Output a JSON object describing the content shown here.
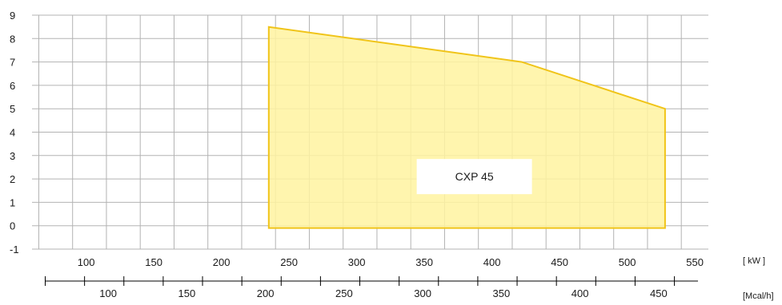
{
  "chart_data": {
    "type": "area",
    "title": "",
    "series": [
      {
        "name": "CXP 45",
        "polygon": [
          {
            "x": 235,
            "y": 8.5
          },
          {
            "x": 422,
            "y": 7.0
          },
          {
            "x": 528,
            "y": 5.0
          },
          {
            "x": 528,
            "y": -0.1
          },
          {
            "x": 235,
            "y": -0.1
          }
        ],
        "fill": "#fff3a0",
        "stroke": "#f0c419"
      }
    ],
    "x_axis": {
      "unit": "[ kW ]",
      "range": [
        60,
        560
      ],
      "ticks": [
        100,
        150,
        200,
        250,
        300,
        350,
        400,
        450,
        500,
        550
      ]
    },
    "x_axis_secondary": {
      "unit": "[Mcal/h]",
      "range": [
        51.6,
        481.6
      ],
      "ticks": [
        100,
        150,
        200,
        250,
        300,
        350,
        400,
        450
      ]
    },
    "y_axis": {
      "range": [
        -1,
        9
      ],
      "ticks": [
        -1,
        0,
        1,
        2,
        3,
        4,
        5,
        6,
        7,
        8,
        9
      ]
    },
    "grid": true
  }
}
